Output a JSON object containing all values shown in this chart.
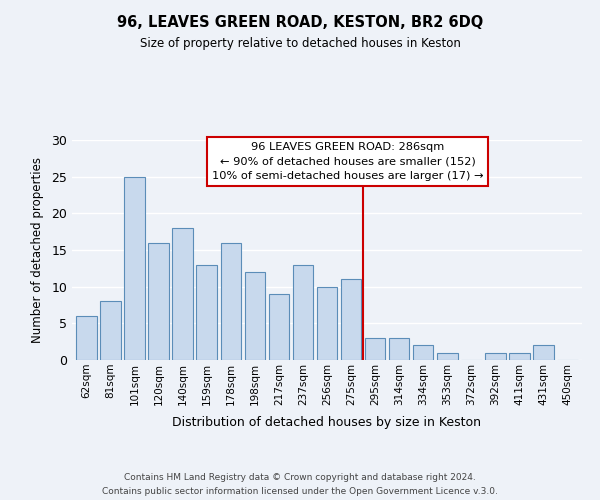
{
  "title": "96, LEAVES GREEN ROAD, KESTON, BR2 6DQ",
  "subtitle": "Size of property relative to detached houses in Keston",
  "xlabel": "Distribution of detached houses by size in Keston",
  "ylabel": "Number of detached properties",
  "bar_labels": [
    "62sqm",
    "81sqm",
    "101sqm",
    "120sqm",
    "140sqm",
    "159sqm",
    "178sqm",
    "198sqm",
    "217sqm",
    "237sqm",
    "256sqm",
    "275sqm",
    "295sqm",
    "314sqm",
    "334sqm",
    "353sqm",
    "372sqm",
    "392sqm",
    "411sqm",
    "431sqm",
    "450sqm"
  ],
  "bar_values": [
    6,
    8,
    25,
    16,
    18,
    13,
    16,
    12,
    9,
    13,
    10,
    11,
    3,
    3,
    2,
    1,
    0,
    1,
    1,
    2,
    0
  ],
  "bar_color": "#c8d9ed",
  "bar_edge_color": "#5b8db8",
  "ylim": [
    0,
    30
  ],
  "yticks": [
    0,
    5,
    10,
    15,
    20,
    25,
    30
  ],
  "vline_x": 11.5,
  "vline_color": "#cc0000",
  "annotation_title": "96 LEAVES GREEN ROAD: 286sqm",
  "annotation_line1": "← 90% of detached houses are smaller (152)",
  "annotation_line2": "10% of semi-detached houses are larger (17) →",
  "footer1": "Contains HM Land Registry data © Crown copyright and database right 2024.",
  "footer2": "Contains public sector information licensed under the Open Government Licence v.3.0.",
  "background_color": "#eef2f8",
  "grid_color": "#ffffff"
}
